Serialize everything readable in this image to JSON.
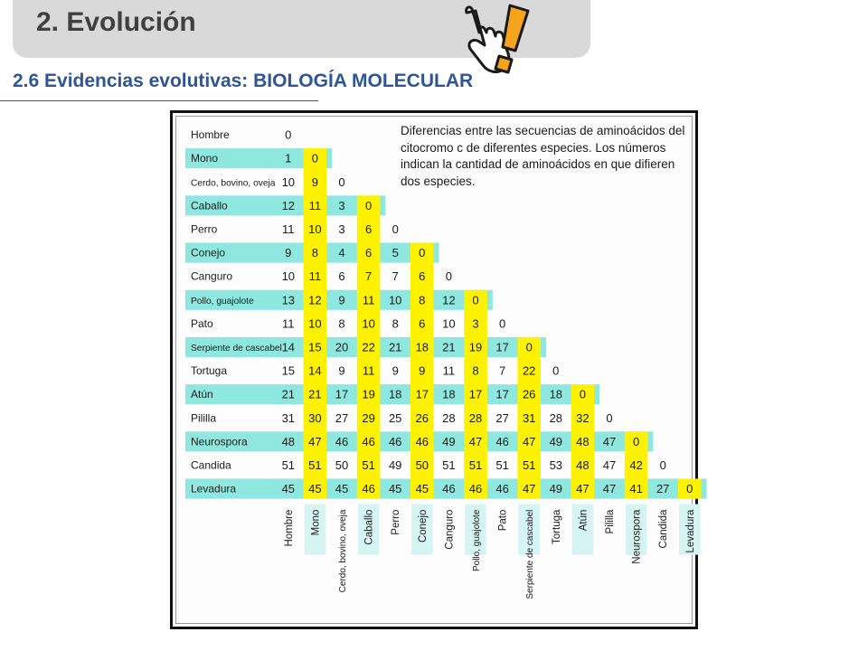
{
  "header": {
    "title": "2. Evolución",
    "icon": "pointing-hand-exclamation-icon"
  },
  "subtitle": "2.6 Evidencias evolutivas: BIOLOGÍA MOLECULAR",
  "colors": {
    "cyan": "#8fe8e0",
    "yellow": "#fff200",
    "title_bar": "#d9d9d9",
    "subtitle": "#2f5597"
  },
  "chart_data": {
    "type": "table",
    "description": "Diferencias entre las secuencias de aminoácidos del citocromo c de diferentes especies. Los números indican la cantidad de aminoácidos en que difieren dos especies.",
    "row_labels": [
      "Hombre",
      "Mono",
      "Cerdo, bovino, oveja",
      "Caballo",
      "Perro",
      "Conejo",
      "Canguro",
      "Pollo, guajolote",
      "Pato",
      "Serpiente de cascabel",
      "Tortuga",
      "Atún",
      "Pililla",
      "Neurospora",
      "Candida",
      "Levadura"
    ],
    "column_labels": [
      "Hombre",
      "Mono",
      "Cerdo, bovino, oveja",
      "Caballo",
      "Perro",
      "Conejo",
      "Canguro",
      "Pollo, guajolote",
      "Pato",
      "Serpiente de cascabel",
      "Tortuga",
      "Atún",
      "Pililla",
      "Neurospora",
      "Candida",
      "Levadura"
    ],
    "values": [
      [
        "0"
      ],
      [
        "1",
        "0"
      ],
      [
        "10",
        "9",
        "0"
      ],
      [
        "12",
        "11",
        "3",
        "0"
      ],
      [
        "11",
        "10",
        "3",
        "6",
        "0"
      ],
      [
        "9",
        "8",
        "4",
        "6",
        "5",
        "0"
      ],
      [
        "10",
        "11",
        "6",
        "7",
        "7",
        "6",
        "0"
      ],
      [
        "13",
        "12",
        "9",
        "11",
        "10",
        "8",
        "12",
        "0"
      ],
      [
        "11",
        "10",
        "8",
        "10",
        "8",
        "6",
        "10",
        "3",
        "0"
      ],
      [
        "14",
        "15",
        "20",
        "22",
        "21",
        "18",
        "21",
        "19",
        "17",
        "0"
      ],
      [
        "15",
        "14",
        "9",
        "11",
        "9",
        "9",
        "11",
        "8",
        "7",
        "22",
        "0"
      ],
      [
        "21",
        "21",
        "17",
        "19",
        "18",
        "17",
        "18",
        "17",
        "17",
        "26",
        "18",
        "0"
      ],
      [
        "31",
        "30",
        "27",
        "29",
        "25",
        "26",
        "28",
        "28",
        "27",
        "31",
        "28",
        "32",
        "0"
      ],
      [
        "48",
        "47",
        "46",
        "46",
        "46",
        "46",
        "49",
        "47",
        "46",
        "47",
        "49",
        "48",
        "47",
        "0"
      ],
      [
        "51",
        "51",
        "50",
        "51",
        "49",
        "50",
        "51",
        "51",
        "51",
        "51",
        "53",
        "48",
        "47",
        "42",
        "0"
      ],
      [
        "45",
        "45",
        "45",
        "46",
        "45",
        "45",
        "46",
        "46",
        "46",
        "47",
        "49",
        "47",
        "47",
        "41",
        "27",
        "0"
      ]
    ],
    "cyan_rows": [
      1,
      3,
      5,
      7,
      9,
      11,
      13,
      15
    ],
    "yellow_columns": [
      1,
      3,
      5,
      7,
      9,
      11,
      13,
      15
    ]
  }
}
